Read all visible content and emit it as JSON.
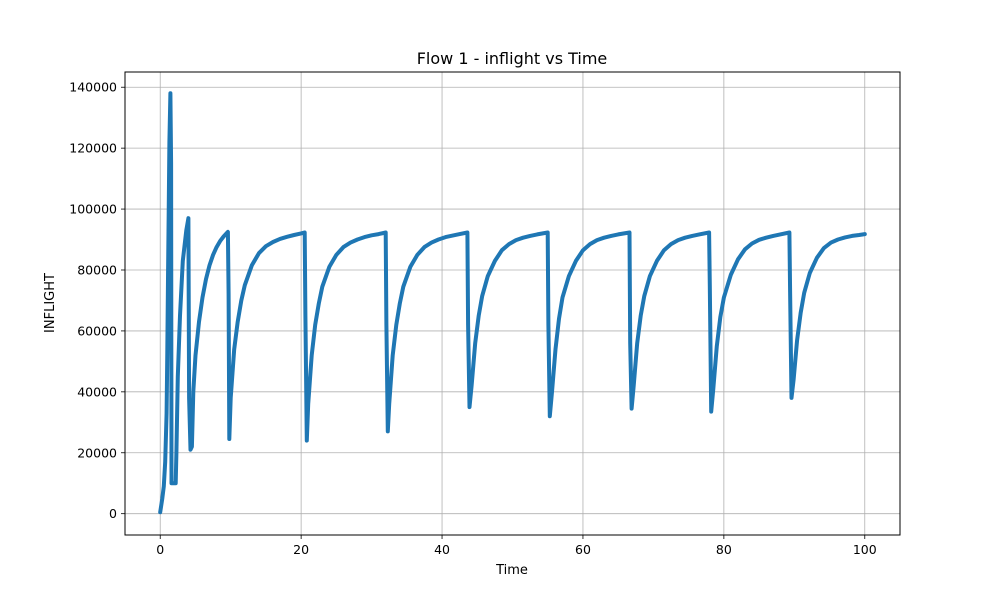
{
  "chart_data": {
    "type": "line",
    "title": "Flow 1 - inflight vs Time",
    "xlabel": "Time",
    "ylabel": "INFLIGHT",
    "xlim": [
      -5,
      105
    ],
    "ylim": [
      -7000,
      145000
    ],
    "xticks": [
      0,
      20,
      40,
      60,
      80,
      100
    ],
    "yticks": [
      0,
      20000,
      40000,
      60000,
      80000,
      100000,
      120000,
      140000
    ],
    "xtick_labels": [
      "0",
      "20",
      "40",
      "60",
      "80",
      "100"
    ],
    "ytick_labels": [
      "0",
      "20000",
      "40000",
      "60000",
      "80000",
      "100000",
      "120000",
      "140000"
    ],
    "grid": true,
    "line_color": "#1f77b4",
    "series": [
      {
        "values": [
          [
            0,
            500
          ],
          [
            0.3,
            5000
          ],
          [
            0.5,
            9000
          ],
          [
            0.7,
            17000
          ],
          [
            0.9,
            33000
          ],
          [
            1.0,
            53000
          ],
          [
            1.1,
            77000
          ],
          [
            1.2,
            99000
          ],
          [
            1.3,
            122000
          ],
          [
            1.45,
            138000
          ],
          [
            1.55,
            115000
          ],
          [
            1.6,
            10000
          ],
          [
            2.2,
            10000
          ],
          [
            2.3,
            20000
          ],
          [
            2.5,
            45000
          ],
          [
            2.8,
            65000
          ],
          [
            3.2,
            83000
          ],
          [
            3.7,
            93000
          ],
          [
            4.0,
            97000
          ],
          [
            4.1,
            38000
          ],
          [
            4.3,
            21000
          ],
          [
            4.5,
            22000
          ],
          [
            4.7,
            40000
          ],
          [
            5.0,
            52000
          ],
          [
            5.5,
            63000
          ],
          [
            6.0,
            71000
          ],
          [
            6.5,
            77000
          ],
          [
            7.0,
            81500
          ],
          [
            7.5,
            85000
          ],
          [
            8.0,
            87500
          ],
          [
            8.5,
            89500
          ],
          [
            9.0,
            91000
          ],
          [
            9.6,
            92500
          ],
          [
            9.7,
            72000
          ],
          [
            9.8,
            24500
          ],
          [
            10.0,
            38000
          ],
          [
            10.5,
            54000
          ],
          [
            11.0,
            63000
          ],
          [
            11.5,
            70000
          ],
          [
            12.0,
            75000
          ],
          [
            13.0,
            81500
          ],
          [
            14.0,
            85500
          ],
          [
            15.0,
            87800
          ],
          [
            16.0,
            89200
          ],
          [
            17.0,
            90200
          ],
          [
            18.0,
            90900
          ],
          [
            19.0,
            91500
          ],
          [
            20.0,
            92000
          ],
          [
            20.5,
            92300
          ],
          [
            20.6,
            65000
          ],
          [
            20.8,
            24000
          ],
          [
            21.0,
            36000
          ],
          [
            21.5,
            52000
          ],
          [
            22.0,
            62000
          ],
          [
            22.5,
            69000
          ],
          [
            23.0,
            74500
          ],
          [
            24.0,
            81000
          ],
          [
            25.0,
            85000
          ],
          [
            26.0,
            87500
          ],
          [
            27.0,
            89000
          ],
          [
            28.0,
            90000
          ],
          [
            29.0,
            90800
          ],
          [
            30.0,
            91400
          ],
          [
            31.0,
            91800
          ],
          [
            32.0,
            92300
          ],
          [
            32.1,
            62000
          ],
          [
            32.3,
            27000
          ],
          [
            32.5,
            36000
          ],
          [
            33.0,
            52000
          ],
          [
            33.5,
            62000
          ],
          [
            34.0,
            69000
          ],
          [
            34.5,
            74500
          ],
          [
            35.5,
            81000
          ],
          [
            36.5,
            85000
          ],
          [
            37.5,
            87500
          ],
          [
            38.5,
            89000
          ],
          [
            39.5,
            90000
          ],
          [
            40.5,
            90800
          ],
          [
            41.5,
            91300
          ],
          [
            42.5,
            91800
          ],
          [
            43.6,
            92300
          ],
          [
            43.7,
            62000
          ],
          [
            43.9,
            35000
          ],
          [
            44.2,
            42000
          ],
          [
            44.7,
            56000
          ],
          [
            45.2,
            65000
          ],
          [
            45.7,
            71500
          ],
          [
            46.5,
            78000
          ],
          [
            47.5,
            83000
          ],
          [
            48.5,
            86500
          ],
          [
            49.5,
            88500
          ],
          [
            50.5,
            89800
          ],
          [
            51.5,
            90600
          ],
          [
            52.5,
            91200
          ],
          [
            53.5,
            91700
          ],
          [
            55.0,
            92300
          ],
          [
            55.1,
            62000
          ],
          [
            55.3,
            32000
          ],
          [
            55.6,
            40000
          ],
          [
            56.1,
            54000
          ],
          [
            56.6,
            64000
          ],
          [
            57.1,
            71000
          ],
          [
            58.0,
            78000
          ],
          [
            59.0,
            83000
          ],
          [
            60.0,
            86500
          ],
          [
            61.0,
            88500
          ],
          [
            62.0,
            89800
          ],
          [
            63.0,
            90600
          ],
          [
            64.0,
            91200
          ],
          [
            65.0,
            91700
          ],
          [
            66.6,
            92300
          ],
          [
            66.7,
            56000
          ],
          [
            66.9,
            34500
          ],
          [
            67.2,
            42000
          ],
          [
            67.7,
            56000
          ],
          [
            68.2,
            65000
          ],
          [
            68.7,
            71500
          ],
          [
            69.5,
            78000
          ],
          [
            70.5,
            83000
          ],
          [
            71.5,
            86500
          ],
          [
            72.5,
            88500
          ],
          [
            73.5,
            89800
          ],
          [
            74.5,
            90600
          ],
          [
            75.5,
            91200
          ],
          [
            76.5,
            91700
          ],
          [
            77.9,
            92300
          ],
          [
            78.0,
            75000
          ],
          [
            78.2,
            33500
          ],
          [
            78.5,
            41000
          ],
          [
            79.0,
            55000
          ],
          [
            79.5,
            64500
          ],
          [
            80.0,
            71000
          ],
          [
            81.0,
            78500
          ],
          [
            82.0,
            83500
          ],
          [
            83.0,
            86800
          ],
          [
            84.0,
            88700
          ],
          [
            85.0,
            89900
          ],
          [
            86.0,
            90600
          ],
          [
            87.0,
            91200
          ],
          [
            88.0,
            91700
          ],
          [
            89.3,
            92300
          ],
          [
            89.4,
            73000
          ],
          [
            89.6,
            38000
          ],
          [
            89.9,
            44000
          ],
          [
            90.4,
            57000
          ],
          [
            90.9,
            66000
          ],
          [
            91.4,
            72500
          ],
          [
            92.2,
            79000
          ],
          [
            93.2,
            84000
          ],
          [
            94.2,
            87200
          ],
          [
            95.2,
            89000
          ],
          [
            96.2,
            90000
          ],
          [
            97.2,
            90700
          ],
          [
            98.2,
            91200
          ],
          [
            99.2,
            91500
          ],
          [
            100.0,
            91800
          ]
        ]
      }
    ]
  }
}
